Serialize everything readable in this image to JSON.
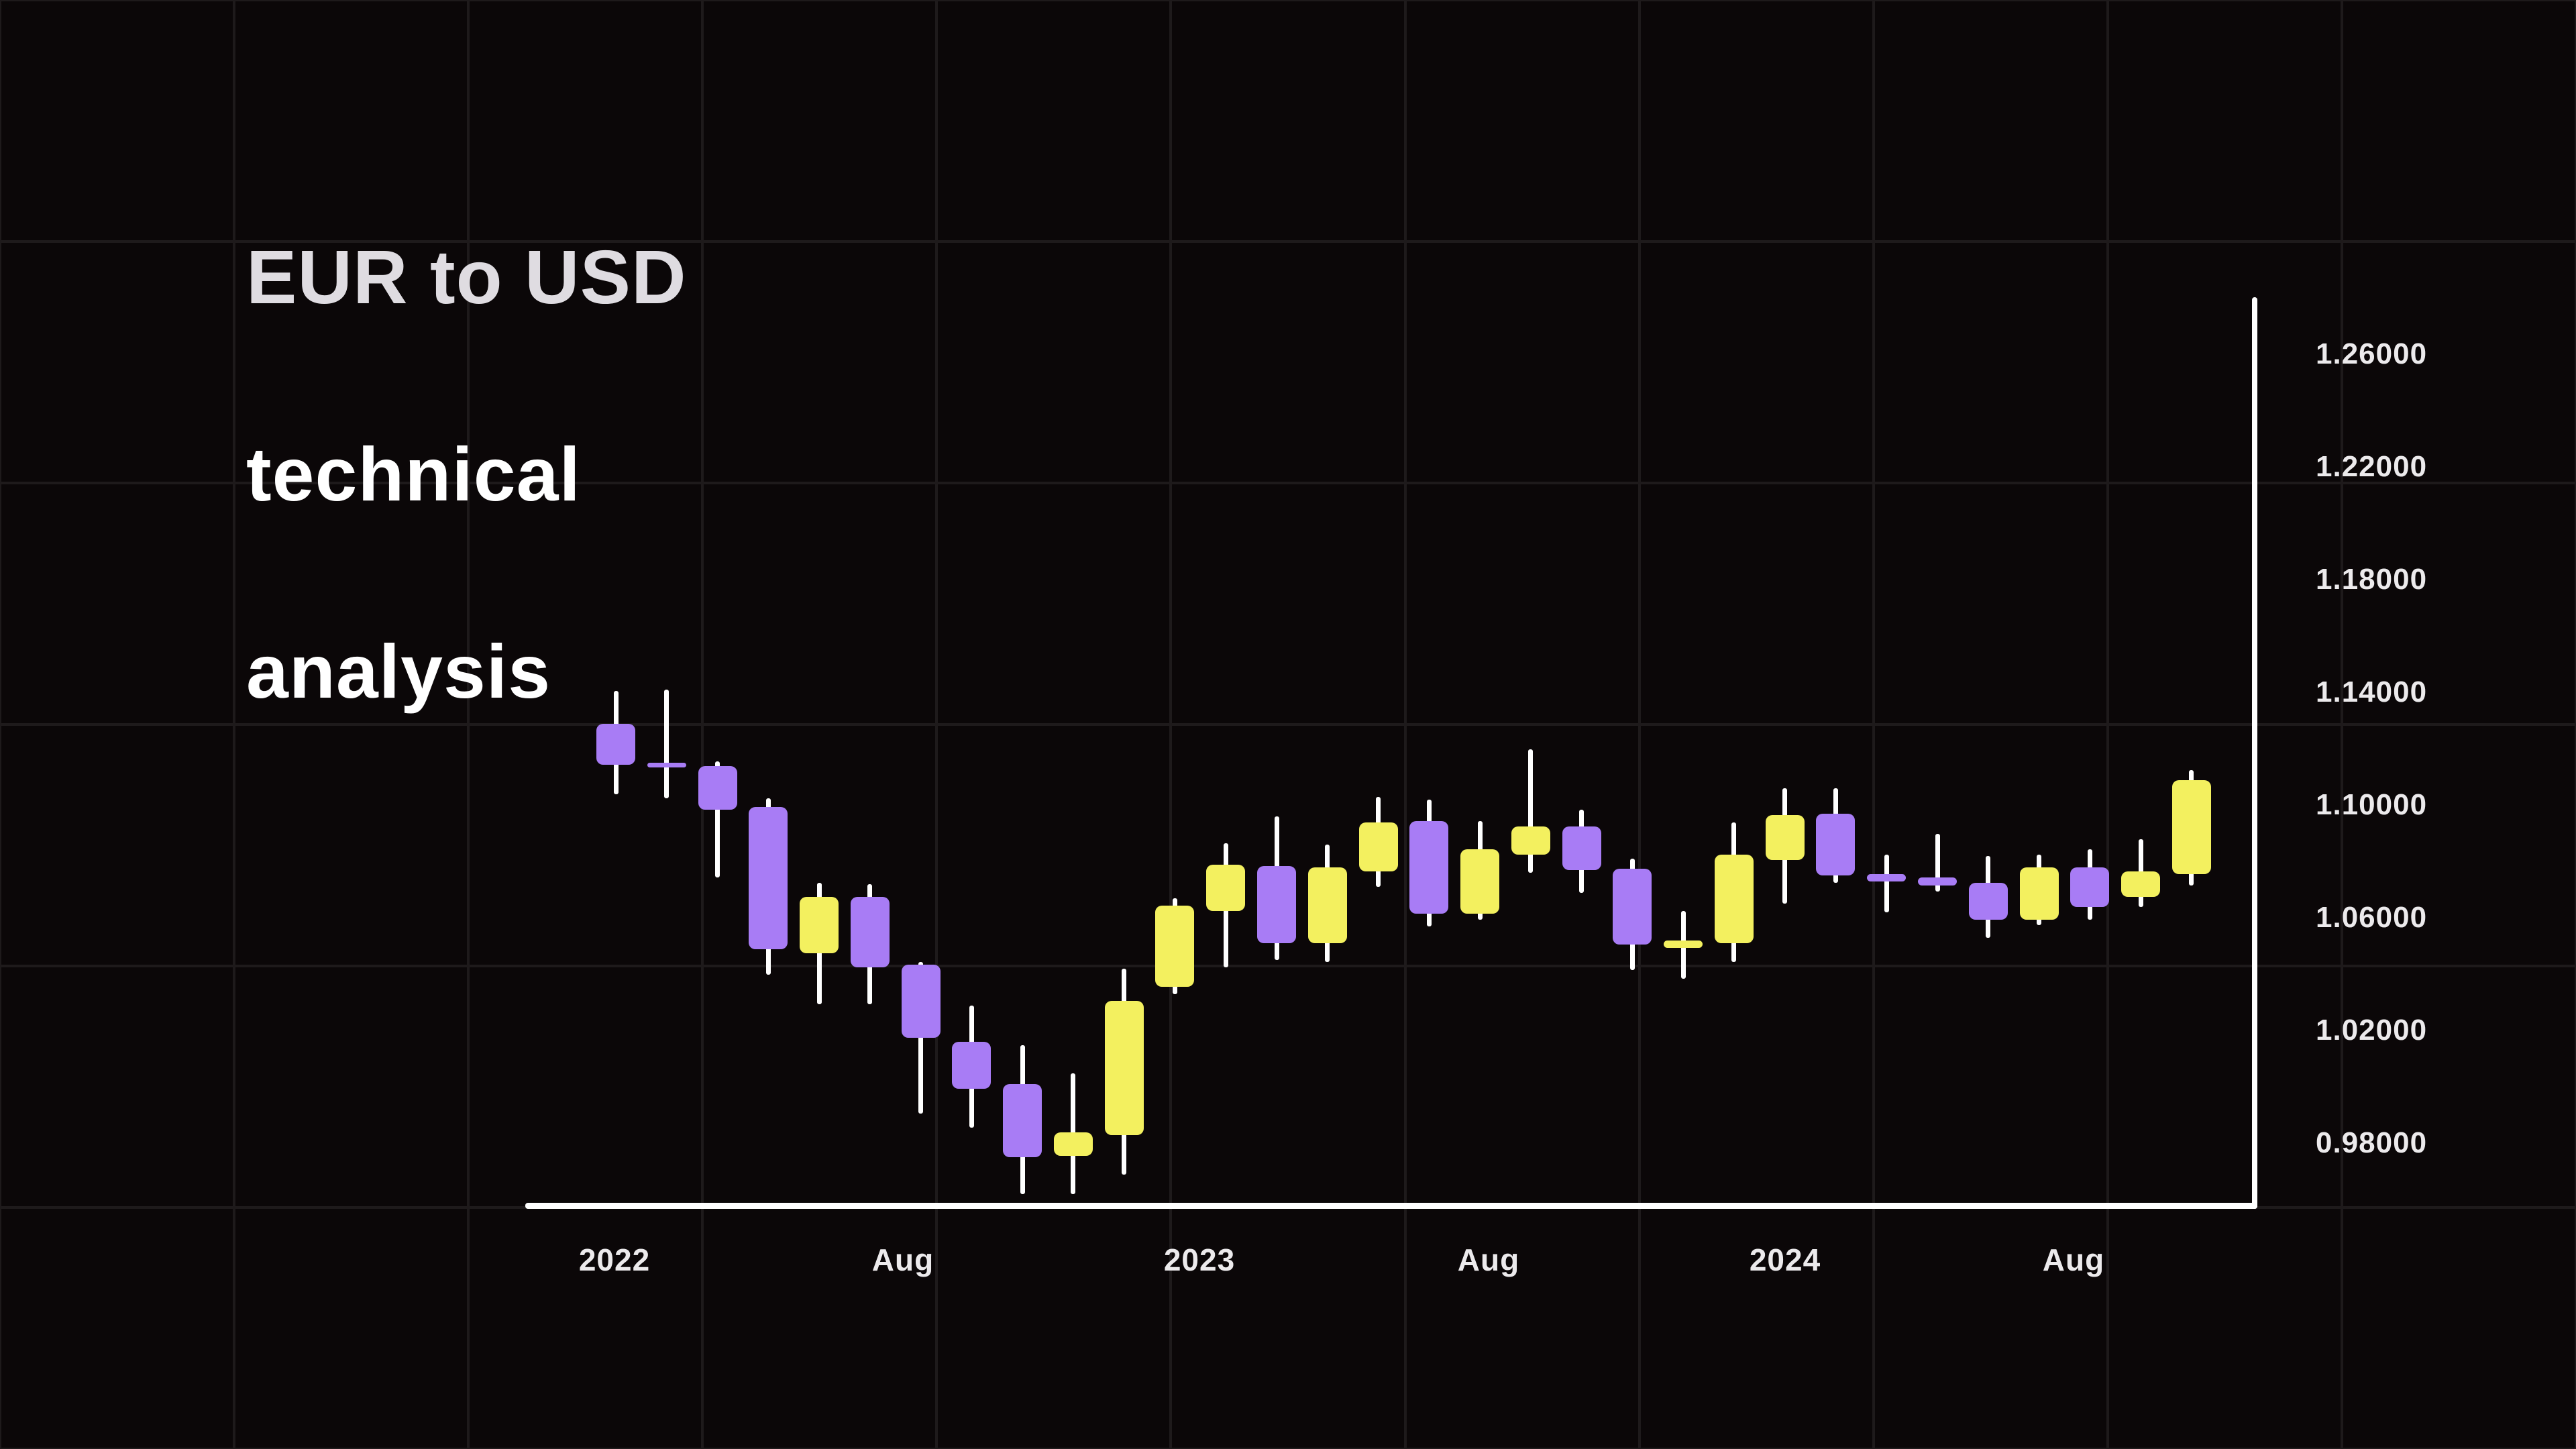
{
  "page": {
    "background": "#0B0708"
  },
  "title": {
    "line1": "EUR to USD",
    "line2": "technical",
    "line3": "analysis"
  },
  "y_axis": {
    "labels": [
      "1.26000",
      "1.22000",
      "1.18000",
      "1.14000",
      "1.10000",
      "1.06000",
      "1.02000",
      "0.98000"
    ]
  },
  "x_axis": {
    "labels": [
      "2022",
      "Aug",
      "2023",
      "Aug",
      "2024",
      "Aug"
    ]
  },
  "colors": {
    "bullish": "#F3F05F",
    "bearish": "#A87CF5",
    "wick": "#FFFFFF",
    "axis": "#FFFFFF",
    "grid": "#1E1A1B",
    "label": "#ECEAEC",
    "background": "#0B0708"
  },
  "chart_data": {
    "type": "candlestick",
    "title": "EUR to USD technical analysis",
    "pair": "EUR/USD",
    "interval": "monthly",
    "ylim": [
      0.98,
      1.26
    ],
    "y_tick_step": 0.04,
    "grid": "on",
    "candles": [
      {
        "month": "Jan 2022",
        "o": 1.1365,
        "h": 1.148,
        "l": 1.1115,
        "c": 1.122
      },
      {
        "month": "Feb 2022",
        "o": 1.1225,
        "h": 1.1485,
        "l": 1.11,
        "c": 1.121
      },
      {
        "month": "Mar 2022",
        "o": 1.1215,
        "h": 1.123,
        "l": 1.082,
        "c": 1.106
      },
      {
        "month": "Apr 2022",
        "o": 1.107,
        "h": 1.11,
        "l": 1.0475,
        "c": 1.0565
      },
      {
        "month": "May 2022",
        "o": 1.055,
        "h": 1.08,
        "l": 1.037,
        "c": 1.075
      },
      {
        "month": "Jun 2022",
        "o": 1.075,
        "h": 1.0795,
        "l": 1.037,
        "c": 1.05
      },
      {
        "month": "Jul 2022",
        "o": 1.051,
        "h": 1.052,
        "l": 0.998,
        "c": 1.025
      },
      {
        "month": "Aug 2022",
        "o": 1.0235,
        "h": 1.0365,
        "l": 0.993,
        "c": 1.007
      },
      {
        "month": "Sep 2022",
        "o": 1.0085,
        "h": 1.0225,
        "l": 0.9695,
        "c": 0.9825
      },
      {
        "month": "Oct 2022",
        "o": 0.983,
        "h": 1.0125,
        "l": 0.9695,
        "c": 0.9915
      },
      {
        "month": "Nov 2022",
        "o": 0.9905,
        "h": 1.0495,
        "l": 0.9765,
        "c": 1.038
      },
      {
        "month": "Dec 2022",
        "o": 1.043,
        "h": 1.0745,
        "l": 1.0405,
        "c": 1.072
      },
      {
        "month": "Jan 2023",
        "o": 1.07,
        "h": 1.094,
        "l": 1.05,
        "c": 1.0865
      },
      {
        "month": "Feb 2023",
        "o": 1.086,
        "h": 1.1035,
        "l": 1.0525,
        "c": 1.0585
      },
      {
        "month": "Mar 2023",
        "o": 1.0585,
        "h": 1.0935,
        "l": 1.052,
        "c": 1.0855
      },
      {
        "month": "Apr 2023",
        "o": 1.084,
        "h": 1.1105,
        "l": 1.0785,
        "c": 1.1015
      },
      {
        "month": "May 2023",
        "o": 1.102,
        "h": 1.1095,
        "l": 1.0645,
        "c": 1.069
      },
      {
        "month": "Jun 2023",
        "o": 1.069,
        "h": 1.102,
        "l": 1.067,
        "c": 1.092
      },
      {
        "month": "Jul 2023",
        "o": 1.09,
        "h": 1.1275,
        "l": 1.0835,
        "c": 1.1
      },
      {
        "month": "Aug 2023",
        "o": 1.1,
        "h": 1.106,
        "l": 1.0765,
        "c": 1.0845
      },
      {
        "month": "Sep 2023",
        "o": 1.085,
        "h": 1.0885,
        "l": 1.049,
        "c": 1.058
      },
      {
        "month": "Oct 2023",
        "o": 1.057,
        "h": 1.07,
        "l": 1.046,
        "c": 1.0595
      },
      {
        "month": "Nov 2023",
        "o": 1.0585,
        "h": 1.1015,
        "l": 1.052,
        "c": 1.09
      },
      {
        "month": "Dec 2023",
        "o": 1.088,
        "h": 1.1135,
        "l": 1.0725,
        "c": 1.104
      },
      {
        "month": "Jan 2024",
        "o": 1.1045,
        "h": 1.1135,
        "l": 1.08,
        "c": 1.0825
      },
      {
        "month": "Feb 2024",
        "o": 1.083,
        "h": 1.09,
        "l": 1.0695,
        "c": 1.0805
      },
      {
        "month": "Mar 2024",
        "o": 1.082,
        "h": 1.0975,
        "l": 1.077,
        "c": 1.079
      },
      {
        "month": "Apr 2024",
        "o": 1.08,
        "h": 1.0895,
        "l": 1.0605,
        "c": 1.067
      },
      {
        "month": "May 2024",
        "o": 1.067,
        "h": 1.09,
        "l": 1.065,
        "c": 1.0855
      },
      {
        "month": "Jun 2024",
        "o": 1.0855,
        "h": 1.092,
        "l": 1.067,
        "c": 1.0715
      },
      {
        "month": "Jul 2024",
        "o": 1.075,
        "h": 1.0955,
        "l": 1.0715,
        "c": 1.084
      },
      {
        "month": "Aug 2024",
        "o": 1.083,
        "h": 1.12,
        "l": 1.079,
        "c": 1.1165
      }
    ]
  }
}
